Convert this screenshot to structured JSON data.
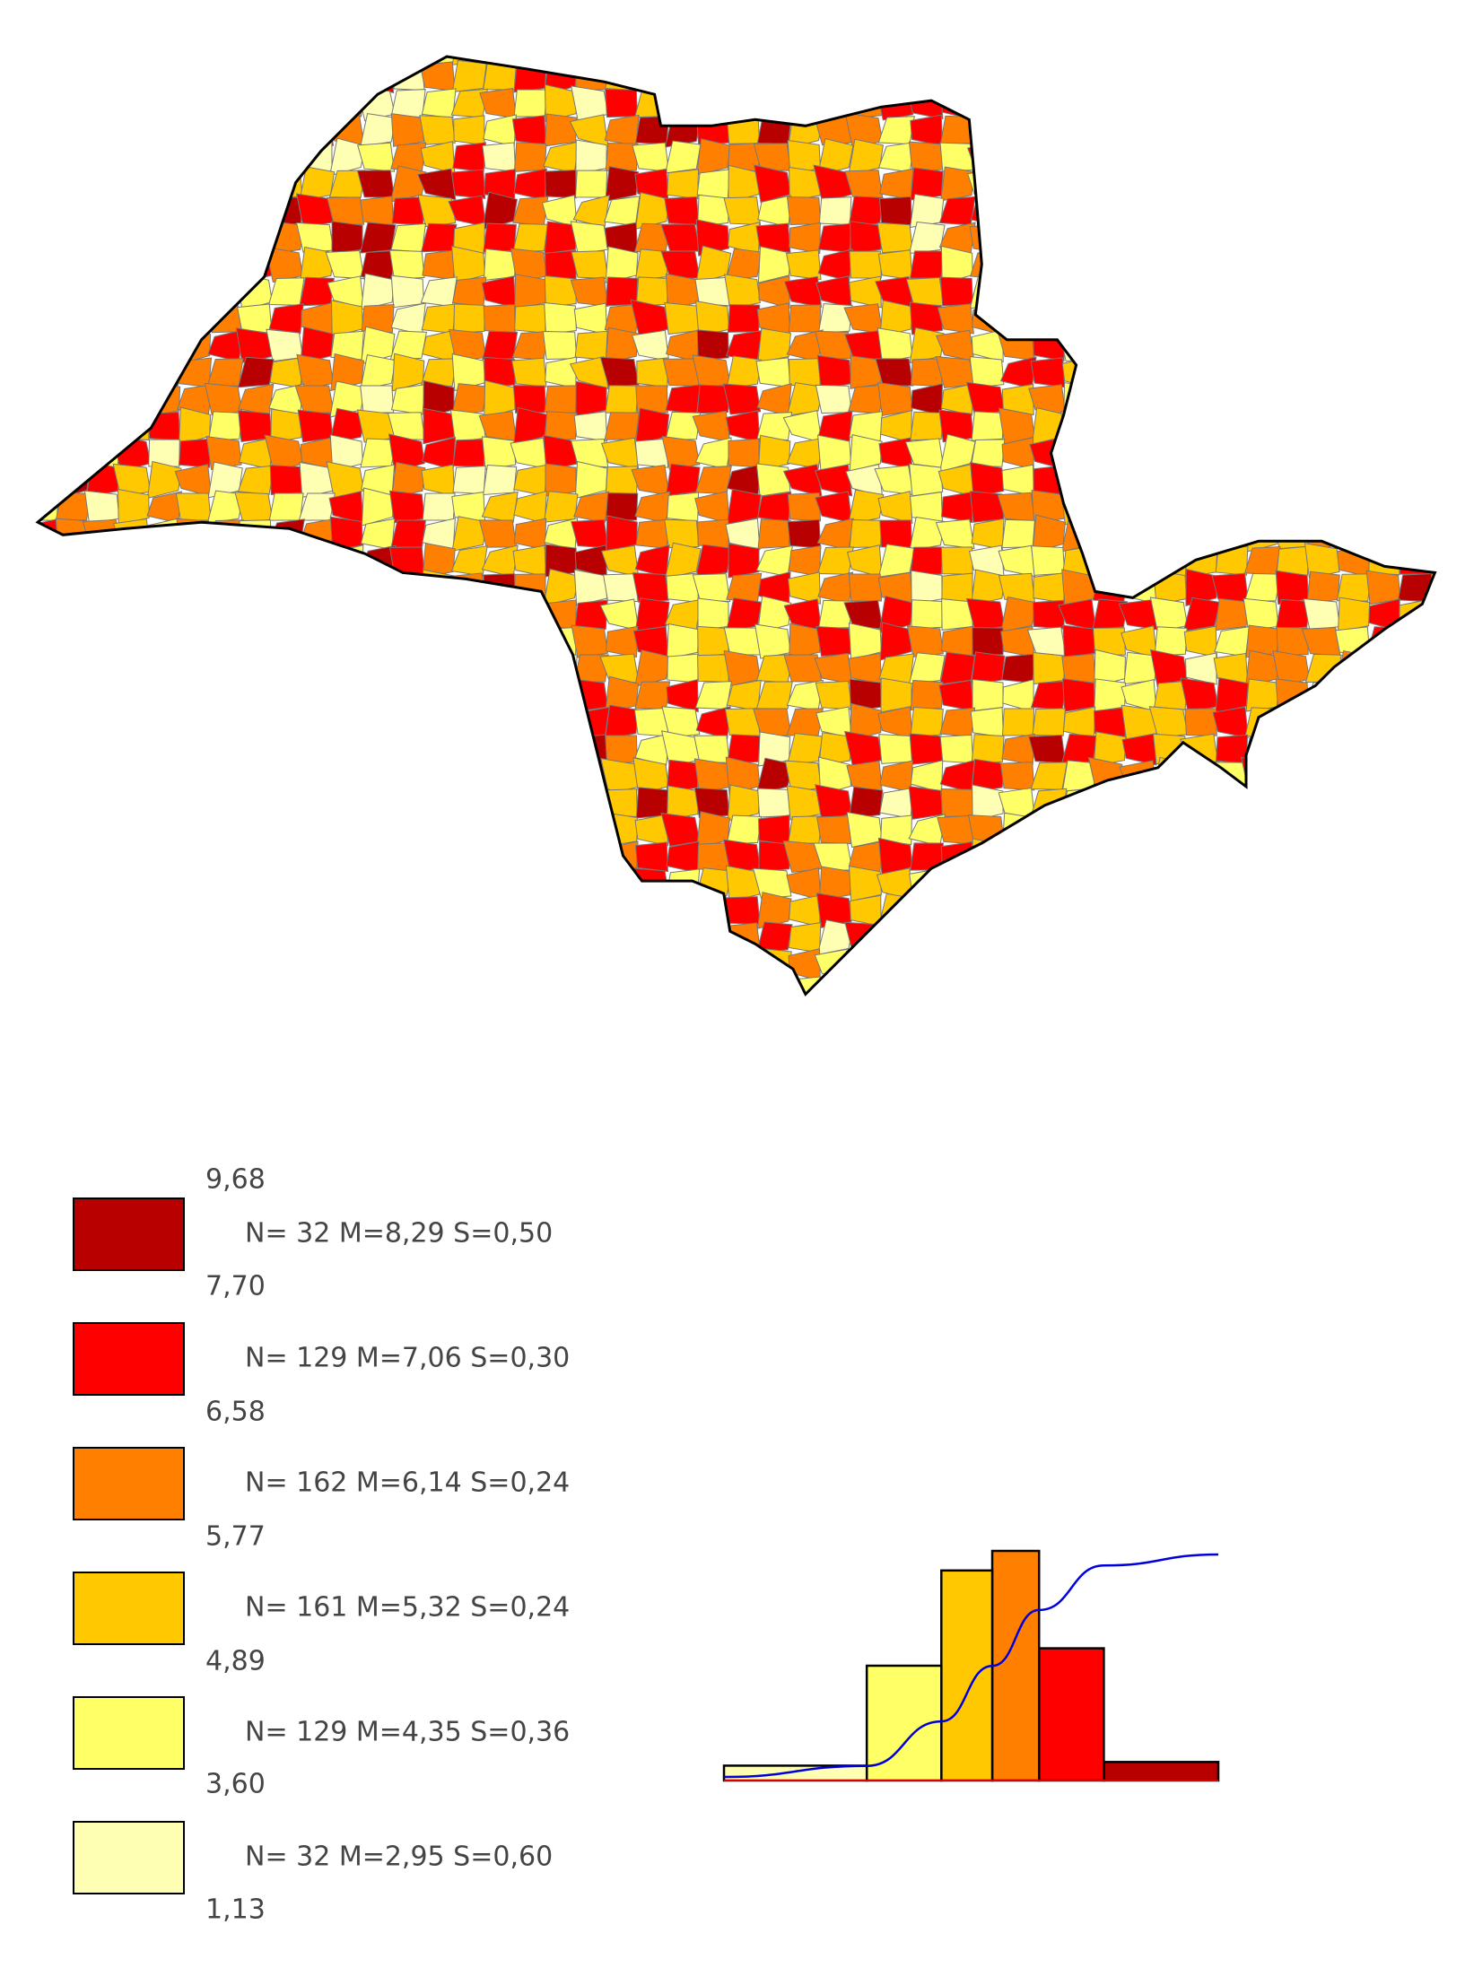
{
  "legend": {
    "bounds": [
      {
        "value": 9.68,
        "label": "9,68"
      },
      {
        "value": 7.7,
        "label": "7,70"
      },
      {
        "value": 6.58,
        "label": "6,58"
      },
      {
        "value": 5.77,
        "label": "5,77"
      },
      {
        "value": 4.89,
        "label": "4,89"
      },
      {
        "value": 3.6,
        "label": "3,60"
      },
      {
        "value": 1.13,
        "label": "1,13"
      }
    ],
    "classes": [
      {
        "color": "#b80000",
        "n": 32,
        "stats": "N= 32  M=8,29  S=0,50"
      },
      {
        "color": "#ff0000",
        "n": 129,
        "stats": "N= 129  M=7,06  S=0,30"
      },
      {
        "color": "#ff8000",
        "n": 162,
        "stats": "N= 162  M=6,14  S=0,24"
      },
      {
        "color": "#ffc800",
        "n": 161,
        "stats": "N= 161  M=5,32  S=0,24"
      },
      {
        "color": "#ffff66",
        "n": 129,
        "stats": "N= 129  M=4,35  S=0,36"
      },
      {
        "color": "#ffffb4",
        "n": 32,
        "stats": "N= 32  M=2,95  S=0,60"
      }
    ]
  }
}
